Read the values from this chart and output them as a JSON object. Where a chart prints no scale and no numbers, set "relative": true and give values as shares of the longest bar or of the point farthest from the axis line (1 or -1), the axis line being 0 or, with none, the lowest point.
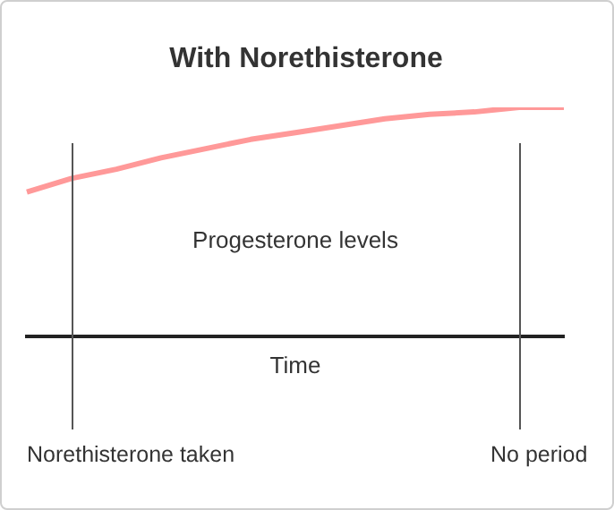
{
  "chart_data": {
    "type": "line",
    "title": "With Norethisterone",
    "xlabel": "Time",
    "ylabel": "Progesterone levels",
    "relative": true,
    "marker": "none",
    "categories": [
      null,
      null,
      null,
      null,
      null,
      null,
      null,
      null,
      null,
      null,
      null,
      null,
      null
    ],
    "series": [
      {
        "color": "#ff9999",
        "values": [
          0.63,
          0.69,
          0.73,
          0.78,
          0.82,
          0.86,
          0.89,
          0.92,
          0.95,
          0.97,
          0.98,
          1,
          1
        ]
      }
    ],
    "annotations": [
      "Norethisterone taken",
      "No period"
    ]
  }
}
